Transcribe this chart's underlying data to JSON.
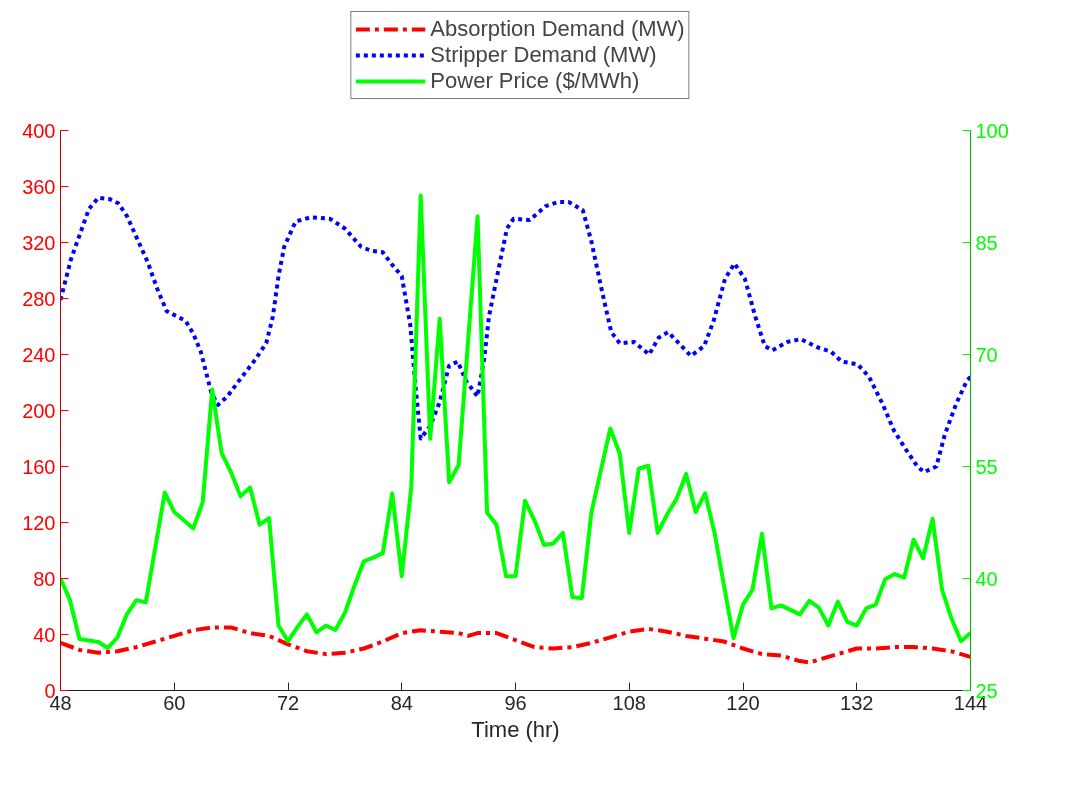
{
  "chart_data": {
    "type": "line",
    "xlabel": "Time (hr)",
    "xlim": [
      48,
      144
    ],
    "xticks": [
      48,
      60,
      72,
      84,
      96,
      108,
      120,
      132,
      144
    ],
    "ylim": [
      0,
      400
    ],
    "yticks": [
      0,
      40,
      80,
      120,
      160,
      200,
      240,
      280,
      320,
      360,
      400
    ],
    "y2lim": [
      25,
      100
    ],
    "y2ticks": [
      25,
      40,
      55,
      70,
      85,
      100
    ],
    "grid": false,
    "legend": "top",
    "series": [
      {
        "name": "Absorption Demand (MW)",
        "color": "#ff0000",
        "line_style": "dashdot",
        "x": [
          48,
          50,
          52,
          54,
          56,
          58,
          60,
          62,
          64,
          66,
          68,
          70,
          72,
          74,
          76,
          78,
          80,
          82,
          84,
          86,
          88,
          90,
          91,
          92,
          94,
          96,
          98,
          100,
          102,
          104,
          106,
          108,
          110,
          112,
          114,
          116,
          118,
          120,
          122,
          124,
          126,
          127,
          130,
          132,
          134,
          136,
          138,
          140,
          142,
          144
        ],
        "values": [
          34,
          29,
          27,
          28,
          31,
          35,
          39,
          43,
          45,
          45,
          41,
          39,
          33,
          28,
          26,
          27,
          30,
          35,
          41,
          43,
          42,
          41,
          39,
          41,
          41,
          36,
          31,
          30,
          31,
          34,
          38,
          42,
          44,
          42,
          39,
          37,
          35,
          30,
          26,
          25,
          21,
          20,
          26,
          30,
          30,
          31,
          31,
          30,
          28,
          24
        ]
      },
      {
        "name": "Stripper Demand (MW)",
        "color": "#0000ff",
        "line_style": "dotted",
        "x": [
          48,
          49.1,
          50,
          51,
          52,
          53.2,
          54.1,
          55,
          56.2,
          57.2,
          58.2,
          59.2,
          61.2,
          62,
          62.8,
          63.9,
          64.6,
          65.6,
          66.8,
          68.4,
          69.7,
          70.4,
          71,
          71.6,
          72.8,
          74.4,
          76.4,
          78,
          79.7,
          80.8,
          82,
          83,
          84,
          84.9,
          85.4,
          86,
          87,
          88,
          89,
          89.9,
          90.8,
          92,
          92.7,
          93.2,
          94,
          95.1,
          95.8,
          97.5,
          99.2,
          100.5,
          101.6,
          103.1,
          104,
          105.1,
          106.1,
          107,
          108.5,
          110.1,
          111.1,
          112.1,
          113.1,
          114.5,
          115.9,
          116.9,
          118.1,
          119.1,
          120.2,
          121.3,
          122.3,
          123.1,
          124.7,
          126.1,
          127.9,
          129.3,
          130.4,
          132.1,
          133.3,
          134.7,
          135.9,
          137.1,
          138.4,
          139.1,
          140.4,
          141.3,
          142.5,
          143.6,
          144
        ],
        "values": [
          279,
          308,
          325,
          344,
          352,
          351,
          348,
          339,
          321,
          306,
          287,
          271,
          264,
          255,
          242,
          213,
          204,
          210,
          221,
          235,
          248,
          267,
          296,
          317,
          335,
          338,
          337,
          330,
          317,
          314,
          313,
          304,
          296,
          261,
          221,
          180,
          189,
          206,
          232,
          235,
          221,
          210,
          237,
          267,
          294,
          330,
          337,
          336,
          346,
          349,
          349,
          343,
          321,
          286,
          256,
          248,
          249,
          240,
          252,
          256,
          249,
          239,
          246,
          264,
          294,
          305,
          294,
          267,
          246,
          243,
          249,
          251,
          245,
          242,
          235,
          233,
          224,
          205,
          186,
          173,
          160,
          156,
          160,
          183,
          205,
          221,
          224
        ]
      },
      {
        "name": "Power Price ($/MWh)",
        "color": "#00ff00",
        "line_style": "solid",
        "axis": "y2",
        "x": [
          48,
          49,
          50,
          52,
          53,
          54,
          55,
          56,
          57,
          59,
          60,
          61,
          62,
          63,
          64,
          65,
          66,
          67,
          68,
          69,
          70,
          71,
          72,
          73,
          74,
          75,
          76,
          77,
          78,
          79,
          80,
          81,
          82,
          83,
          84,
          85,
          86,
          87,
          88,
          89,
          90,
          92,
          93,
          94,
          95,
          96,
          97,
          98,
          99,
          100,
          101,
          102,
          103,
          104,
          106,
          107,
          108,
          109,
          110,
          111,
          112,
          113,
          114,
          115,
          116,
          117,
          118,
          119,
          120,
          121,
          122,
          123,
          124,
          125,
          126,
          127,
          128,
          129,
          130,
          131,
          132,
          133,
          134,
          135,
          136,
          137,
          138,
          139,
          140,
          141,
          142,
          143,
          144
        ],
        "values": [
          40.0,
          37.1,
          31.9,
          31.5,
          30.7,
          32.1,
          35.2,
          37.1,
          36.8,
          51.5,
          48.9,
          47.8,
          46.7,
          50.2,
          65.3,
          56.8,
          54.2,
          51.0,
          52.2,
          47.2,
          48.1,
          33.7,
          31.6,
          33.5,
          35.2,
          32.8,
          33.7,
          33.1,
          35.4,
          39.0,
          42.3,
          42.8,
          43.4,
          51.4,
          40.3,
          52.2,
          91.3,
          58.7,
          74.8,
          52.9,
          55.2,
          88.5,
          48.8,
          47.2,
          40.3,
          40.3,
          50.4,
          47.8,
          44.5,
          44.7,
          46.1,
          37.5,
          37.4,
          48.8,
          60.1,
          56.7,
          46.1,
          54.7,
          55.1,
          46.1,
          48.6,
          50.7,
          54.0,
          48.9,
          51.4,
          46.1,
          39.0,
          32.0,
          36.5,
          38.5,
          46.0,
          36.0,
          36.4,
          35.8,
          35.2,
          37.0,
          36.1,
          33.7,
          36.9,
          34.2,
          33.7,
          36.0,
          36.5,
          39.9,
          40.6,
          40.1,
          45.2,
          42.7,
          48.0,
          38.5,
          34.6,
          31.6,
          32.7
        ]
      }
    ]
  }
}
